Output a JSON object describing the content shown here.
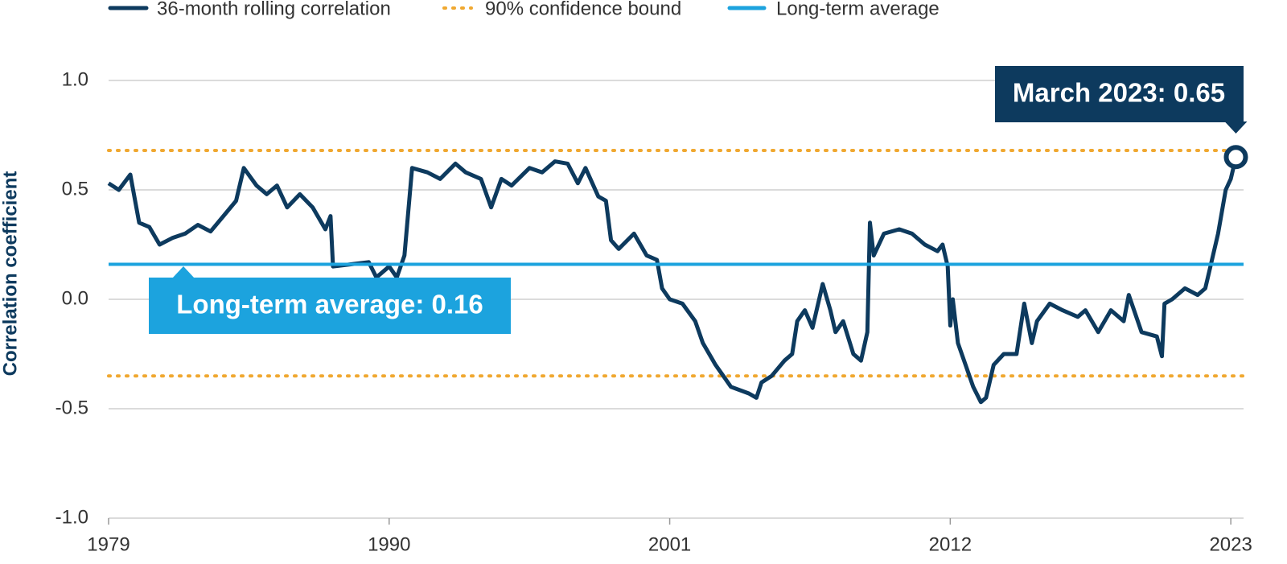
{
  "chart_data": {
    "type": "line",
    "y_label": "Correlation coefficient",
    "x": [
      1979.0,
      1979.4,
      1979.85,
      1980.2,
      1980.6,
      1981.0,
      1981.5,
      1982.0,
      1982.5,
      1983.0,
      1983.5,
      1984.0,
      1984.3,
      1984.8,
      1985.2,
      1985.6,
      1986.0,
      1986.5,
      1987.0,
      1987.5,
      1987.7,
      1987.8,
      1988.5,
      1989.2,
      1989.5,
      1990.0,
      1990.3,
      1990.6,
      1990.9,
      1991.5,
      1992.0,
      1992.6,
      1993.0,
      1993.6,
      1994.0,
      1994.4,
      1994.8,
      1995.5,
      1996.0,
      1996.5,
      1997.0,
      1997.4,
      1997.7,
      1998.2,
      1998.5,
      1998.7,
      1999.0,
      1999.6,
      2000.1,
      2000.5,
      2000.7,
      2001.0,
      2001.5,
      2002.0,
      2002.3,
      2002.8,
      2003.1,
      2003.4,
      2004.1,
      2004.4,
      2004.6,
      2005.0,
      2005.5,
      2005.8,
      2006.0,
      2006.3,
      2006.6,
      2007.0,
      2007.3,
      2007.5,
      2007.8,
      2008.2,
      2008.5,
      2008.75,
      2008.85,
      2009.0,
      2009.4,
      2010.0,
      2010.5,
      2011.0,
      2011.5,
      2011.7,
      2011.9,
      2012.0,
      2012.1,
      2012.3,
      2012.6,
      2012.9,
      2013.2,
      2013.4,
      2013.7,
      2014.1,
      2014.6,
      2014.9,
      2015.2,
      2015.4,
      2015.9,
      2016.4,
      2017.0,
      2017.3,
      2017.8,
      2018.3,
      2018.8,
      2019.0,
      2019.5,
      2020.1,
      2020.3,
      2020.4,
      2020.7,
      2021.2,
      2021.7,
      2022.0,
      2022.2,
      2022.5,
      2022.8,
      2023.0,
      2023.2
    ],
    "series": [
      {
        "name": "36-month rolling correlation",
        "color": "#0d3a5e",
        "values": [
          0.53,
          0.5,
          0.57,
          0.35,
          0.33,
          0.25,
          0.28,
          0.3,
          0.34,
          0.31,
          0.38,
          0.45,
          0.6,
          0.52,
          0.48,
          0.52,
          0.42,
          0.48,
          0.42,
          0.32,
          0.38,
          0.15,
          0.16,
          0.17,
          0.1,
          0.15,
          0.1,
          0.2,
          0.6,
          0.58,
          0.55,
          0.62,
          0.58,
          0.55,
          0.42,
          0.55,
          0.52,
          0.6,
          0.58,
          0.63,
          0.62,
          0.53,
          0.6,
          0.47,
          0.45,
          0.27,
          0.23,
          0.3,
          0.2,
          0.18,
          0.05,
          0.0,
          -0.02,
          -0.1,
          -0.2,
          -0.3,
          -0.35,
          -0.4,
          -0.43,
          -0.45,
          -0.38,
          -0.35,
          -0.28,
          -0.25,
          -0.1,
          -0.05,
          -0.13,
          0.07,
          -0.05,
          -0.15,
          -0.1,
          -0.25,
          -0.28,
          -0.15,
          0.35,
          0.2,
          0.3,
          0.32,
          0.3,
          0.25,
          0.22,
          0.25,
          0.15,
          -0.12,
          0.0,
          -0.2,
          -0.3,
          -0.4,
          -0.47,
          -0.45,
          -0.3,
          -0.25,
          -0.25,
          -0.02,
          -0.2,
          -0.1,
          -0.02,
          -0.05,
          -0.08,
          -0.05,
          -0.15,
          -0.05,
          -0.1,
          0.02,
          -0.15,
          -0.17,
          -0.26,
          -0.02,
          0.0,
          0.05,
          0.02,
          0.05,
          0.15,
          0.3,
          0.5,
          0.55,
          0.65
        ]
      }
    ],
    "confidence_bound": {
      "name": "90% confidence bound",
      "color": "#f0a830",
      "values": [
        0.68,
        -0.35
      ]
    },
    "long_term_average": {
      "name": "Long-term average",
      "color": "#1ca3de",
      "value": 0.16
    },
    "annotations": [
      {
        "text": "March 2023: 0.65",
        "color": "#0d3a5e"
      },
      {
        "text": "Long-term average: 0.16",
        "color": "#1ca3de"
      }
    ],
    "xlim": [
      1979,
      2023.5
    ],
    "xticks": [
      1979,
      1990,
      2001,
      2012,
      2023
    ],
    "ylim": [
      -1,
      1
    ],
    "yticks": [
      {
        "value": 1,
        "label": "1.0"
      },
      0.5,
      {
        "value": 0,
        "label": "0.0"
      },
      -0.5,
      {
        "value": -1,
        "label": "-1.0"
      }
    ],
    "grid": true
  }
}
